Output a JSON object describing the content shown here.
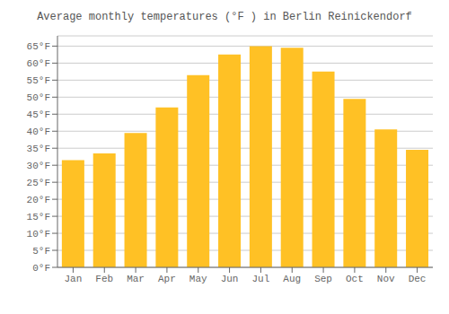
{
  "chart_data": {
    "type": "bar",
    "title": "Average monthly temperatures (°F ) in Berlin Reinickendorf",
    "categories": [
      "Jan",
      "Feb",
      "Mar",
      "Apr",
      "May",
      "Jun",
      "Jul",
      "Aug",
      "Sep",
      "Oct",
      "Nov",
      "Dec"
    ],
    "values": [
      31.5,
      33.5,
      39.5,
      47.0,
      56.5,
      62.5,
      65.0,
      64.5,
      57.5,
      49.5,
      40.5,
      34.5
    ],
    "color": "#FFC125",
    "ylim": [
      0,
      68
    ],
    "yticks": [
      {
        "value": 0,
        "label": "0°F"
      },
      {
        "value": 5,
        "label": "5°F"
      },
      {
        "value": 10,
        "label": "10°F"
      },
      {
        "value": 15,
        "label": "15°F"
      },
      {
        "value": 20,
        "label": "20°F"
      },
      {
        "value": 25,
        "label": "25°F"
      },
      {
        "value": 30,
        "label": "30°F"
      },
      {
        "value": 35,
        "label": "35°F"
      },
      {
        "value": 40,
        "label": "40°F"
      },
      {
        "value": 45,
        "label": "45°F"
      },
      {
        "value": 50,
        "label": "50°F"
      },
      {
        "value": 55,
        "label": "55°F"
      },
      {
        "value": 60,
        "label": "60°F"
      },
      {
        "value": 65,
        "label": "65°F"
      }
    ],
    "grid": true
  }
}
